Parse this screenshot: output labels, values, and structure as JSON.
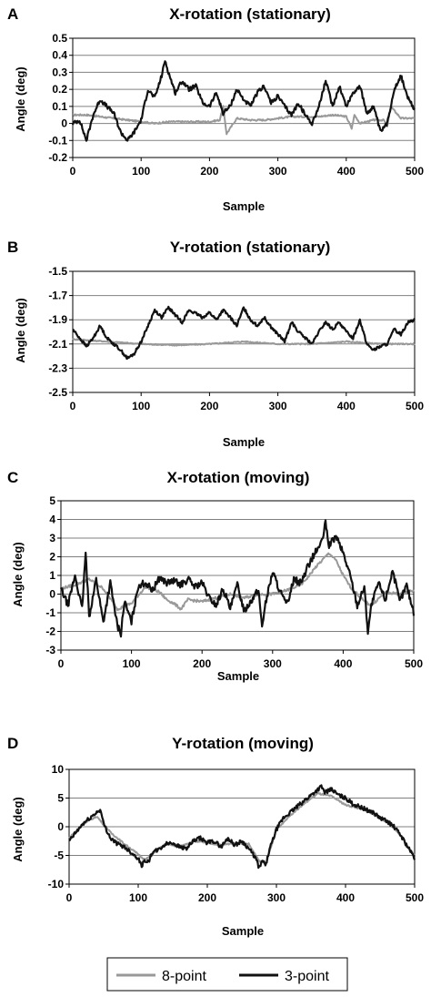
{
  "colors": {
    "series_8pt": "#999999",
    "series_3pt": "#111111",
    "grid": "#808080",
    "axis": "#000000"
  },
  "legend": {
    "placement": "bottom",
    "items": [
      "8-point",
      "3-point"
    ]
  },
  "chart_data": [
    {
      "type": "line",
      "panel_label": "A",
      "title": "X-rotation (stationary)",
      "xlabel": "Sample",
      "ylabel": "Angle (deg)",
      "xlim": [
        0,
        500
      ],
      "ylim": [
        -0.2,
        0.5
      ],
      "xticks": [
        "0",
        "100",
        "200",
        "300",
        "400",
        "500"
      ],
      "yticks": [
        "-0.2",
        "-0.1",
        "0",
        "0.1",
        "0.2",
        "0.3",
        "0.4",
        "0.5"
      ],
      "grid": "horizontal",
      "series": [
        {
          "name": "8-point",
          "x": [
            0,
            20,
            40,
            60,
            80,
            100,
            120,
            140,
            160,
            180,
            200,
            215,
            220,
            225,
            240,
            260,
            280,
            300,
            320,
            340,
            360,
            380,
            400,
            408,
            412,
            420,
            440,
            455,
            460,
            465,
            480,
            500
          ],
          "y": [
            0.05,
            0.05,
            0.04,
            0.03,
            0.02,
            0.01,
            0.0,
            0.01,
            0.01,
            0.01,
            0.01,
            0.02,
            0.1,
            -0.06,
            0.03,
            0.02,
            0.02,
            0.03,
            0.04,
            0.04,
            0.04,
            0.05,
            0.04,
            -0.03,
            0.05,
            0.0,
            0.02,
            0.02,
            -0.02,
            0.1,
            0.03,
            0.03
          ]
        },
        {
          "name": "3-point",
          "x": [
            0,
            10,
            20,
            30,
            40,
            50,
            60,
            70,
            80,
            90,
            100,
            110,
            120,
            130,
            135,
            140,
            150,
            160,
            170,
            180,
            190,
            200,
            210,
            220,
            230,
            240,
            250,
            260,
            270,
            280,
            290,
            300,
            310,
            320,
            330,
            340,
            350,
            360,
            370,
            380,
            390,
            400,
            410,
            420,
            430,
            440,
            450,
            460,
            470,
            480,
            490,
            500
          ],
          "y": [
            0.0,
            0.02,
            -0.1,
            0.05,
            0.14,
            0.1,
            0.06,
            -0.05,
            -0.1,
            -0.05,
            0.02,
            0.2,
            0.15,
            0.28,
            0.37,
            0.3,
            0.18,
            0.25,
            0.2,
            0.22,
            0.12,
            0.1,
            0.18,
            0.06,
            0.1,
            0.2,
            0.14,
            0.1,
            0.18,
            0.22,
            0.12,
            0.16,
            0.1,
            0.05,
            0.12,
            0.05,
            0.0,
            0.1,
            0.25,
            0.1,
            0.22,
            0.1,
            0.18,
            0.22,
            0.06,
            0.1,
            -0.05,
            0.0,
            0.2,
            0.28,
            0.15,
            0.08
          ]
        }
      ]
    },
    {
      "type": "line",
      "panel_label": "B",
      "title": "Y-rotation (stationary)",
      "xlabel": "Sample",
      "ylabel": "Angle (deg)",
      "xlim": [
        0,
        500
      ],
      "ylim": [
        -2.5,
        -1.5
      ],
      "xticks": [
        "0",
        "100",
        "200",
        "300",
        "400",
        "500"
      ],
      "yticks": [
        "-2.5",
        "-2.3",
        "-2.1",
        "-1.9",
        "-1.7",
        "-1.5"
      ],
      "grid": "horizontal",
      "series": [
        {
          "name": "8-point",
          "x": [
            0,
            50,
            100,
            150,
            200,
            250,
            300,
            350,
            400,
            450,
            500
          ],
          "y": [
            -2.06,
            -2.08,
            -2.1,
            -2.11,
            -2.1,
            -2.08,
            -2.1,
            -2.1,
            -2.08,
            -2.1,
            -2.1
          ]
        },
        {
          "name": "3-point",
          "x": [
            0,
            10,
            20,
            30,
            40,
            50,
            60,
            70,
            80,
            90,
            100,
            110,
            120,
            130,
            140,
            150,
            160,
            170,
            180,
            190,
            200,
            210,
            220,
            230,
            240,
            250,
            260,
            270,
            280,
            290,
            300,
            310,
            320,
            330,
            340,
            350,
            360,
            370,
            380,
            390,
            400,
            410,
            420,
            430,
            440,
            450,
            460,
            470,
            480,
            490,
            500
          ],
          "y": [
            -1.98,
            -2.05,
            -2.12,
            -2.05,
            -1.95,
            -2.05,
            -2.1,
            -2.15,
            -2.22,
            -2.18,
            -2.08,
            -1.95,
            -1.82,
            -1.88,
            -1.8,
            -1.86,
            -1.92,
            -1.82,
            -1.85,
            -1.88,
            -1.84,
            -1.9,
            -1.82,
            -1.88,
            -1.95,
            -1.8,
            -1.9,
            -1.95,
            -1.88,
            -1.96,
            -2.02,
            -2.08,
            -1.92,
            -2.0,
            -2.05,
            -2.1,
            -2.0,
            -1.92,
            -1.98,
            -1.92,
            -2.0,
            -2.05,
            -1.9,
            -2.1,
            -2.15,
            -2.12,
            -2.1,
            -1.98,
            -2.02,
            -1.92,
            -1.9
          ]
        }
      ]
    },
    {
      "type": "line",
      "panel_label": "C",
      "title": "X-rotation (moving)",
      "xlabel": "Sample",
      "ylabel": "Angle (deg)",
      "xlim": [
        0,
        500
      ],
      "ylim": [
        -3,
        5
      ],
      "xticks": [
        "0",
        "100",
        "200",
        "300",
        "400",
        "500"
      ],
      "yticks": [
        "-3",
        "-2",
        "-1",
        "0",
        "1",
        "2",
        "3",
        "4",
        "5"
      ],
      "grid": "horizontal",
      "series": [
        {
          "name": "8-point",
          "x": [
            0,
            20,
            40,
            60,
            80,
            100,
            120,
            140,
            150,
            160,
            170,
            180,
            200,
            220,
            240,
            260,
            280,
            300,
            320,
            340,
            350,
            360,
            370,
            380,
            390,
            400,
            410,
            420,
            430,
            440,
            460,
            480,
            500
          ],
          "y": [
            0.3,
            0.5,
            0.8,
            0.3,
            -0.8,
            -0.5,
            0.4,
            0.1,
            -0.3,
            -0.5,
            -0.8,
            -0.3,
            -0.4,
            -0.2,
            0.0,
            -0.2,
            0.0,
            0.0,
            0.2,
            0.5,
            0.9,
            1.4,
            1.8,
            2.2,
            1.8,
            1.0,
            0.4,
            0.0,
            -0.4,
            -0.6,
            0.1,
            0.0,
            0.2
          ]
        },
        {
          "name": "3-point",
          "x": [
            0,
            10,
            20,
            30,
            35,
            40,
            50,
            60,
            70,
            80,
            85,
            90,
            100,
            110,
            120,
            130,
            140,
            150,
            160,
            170,
            180,
            190,
            200,
            210,
            220,
            230,
            240,
            250,
            260,
            270,
            280,
            285,
            290,
            300,
            310,
            320,
            330,
            340,
            350,
            360,
            370,
            375,
            380,
            390,
            400,
            410,
            420,
            430,
            435,
            440,
            450,
            460,
            470,
            480,
            490,
            500
          ],
          "y": [
            0.3,
            -0.6,
            1.0,
            -0.8,
            2.2,
            -1.2,
            0.8,
            -1.5,
            0.6,
            -1.7,
            -2.1,
            -0.4,
            -1.5,
            0.5,
            0.6,
            0.2,
            0.9,
            0.6,
            0.7,
            0.5,
            0.8,
            0.4,
            0.6,
            -0.2,
            -0.6,
            0.3,
            -0.8,
            0.5,
            -0.9,
            -0.3,
            0.2,
            -1.7,
            -0.5,
            1.2,
            0.2,
            -0.6,
            0.8,
            0.6,
            1.5,
            2.2,
            2.8,
            3.8,
            2.6,
            3.1,
            2.2,
            1.0,
            -0.6,
            0.4,
            -2.0,
            -0.6,
            0.6,
            -0.3,
            1.3,
            -0.4,
            0.5,
            -1.0
          ]
        }
      ]
    },
    {
      "type": "line",
      "panel_label": "D",
      "title": "Y-rotation (moving)",
      "xlabel": "Sample",
      "ylabel": "Angle (deg)",
      "xlim": [
        0,
        500
      ],
      "ylim": [
        -10,
        10
      ],
      "xticks": [
        "0",
        "100",
        "200",
        "300",
        "400",
        "500"
      ],
      "yticks": [
        "-10",
        "-5",
        "0",
        "5",
        "10"
      ],
      "grid": "horizontal",
      "series": [
        {
          "name": "8-point",
          "x": [
            0,
            20,
            40,
            60,
            80,
            100,
            110,
            120,
            140,
            160,
            180,
            200,
            220,
            240,
            260,
            275,
            285,
            300,
            320,
            340,
            360,
            380,
            400,
            420,
            440,
            460,
            480,
            490,
            500
          ],
          "y": [
            -2,
            0.5,
            1.8,
            -1,
            -3,
            -4.8,
            -5.8,
            -4.8,
            -3,
            -3.5,
            -2.5,
            -2.8,
            -3.2,
            -2.8,
            -3,
            -6,
            -6.4,
            -0.5,
            2,
            4,
            5.8,
            5.3,
            3.8,
            3.2,
            2.2,
            0.8,
            -1.5,
            -3.5,
            -5
          ]
        },
        {
          "name": "3-point",
          "x": [
            0,
            10,
            20,
            30,
            40,
            45,
            50,
            60,
            70,
            80,
            90,
            100,
            105,
            110,
            115,
            120,
            130,
            140,
            150,
            160,
            170,
            180,
            190,
            200,
            210,
            220,
            230,
            240,
            250,
            260,
            270,
            275,
            280,
            285,
            290,
            300,
            310,
            320,
            330,
            340,
            350,
            360,
            365,
            370,
            380,
            390,
            400,
            410,
            420,
            430,
            440,
            450,
            460,
            470,
            480,
            490,
            500
          ],
          "y": [
            -2.5,
            -1,
            0.5,
            1.5,
            2.5,
            3,
            0.5,
            -2,
            -3,
            -3.5,
            -4.5,
            -5.5,
            -6.8,
            -5.8,
            -6.2,
            -4.5,
            -4,
            -3,
            -2.8,
            -3.5,
            -3.8,
            -2.5,
            -2,
            -2.8,
            -2.5,
            -3.5,
            -2,
            -3.2,
            -2.5,
            -3.8,
            -5.5,
            -7.2,
            -6,
            -6.5,
            -4,
            -0.5,
            1.5,
            2.5,
            3.5,
            4.5,
            5.5,
            6.5,
            7,
            6,
            6.5,
            5.5,
            5,
            4,
            3.5,
            3,
            2.5,
            1.5,
            1,
            0,
            -1.5,
            -3.5,
            -5.5
          ]
        }
      ]
    }
  ]
}
